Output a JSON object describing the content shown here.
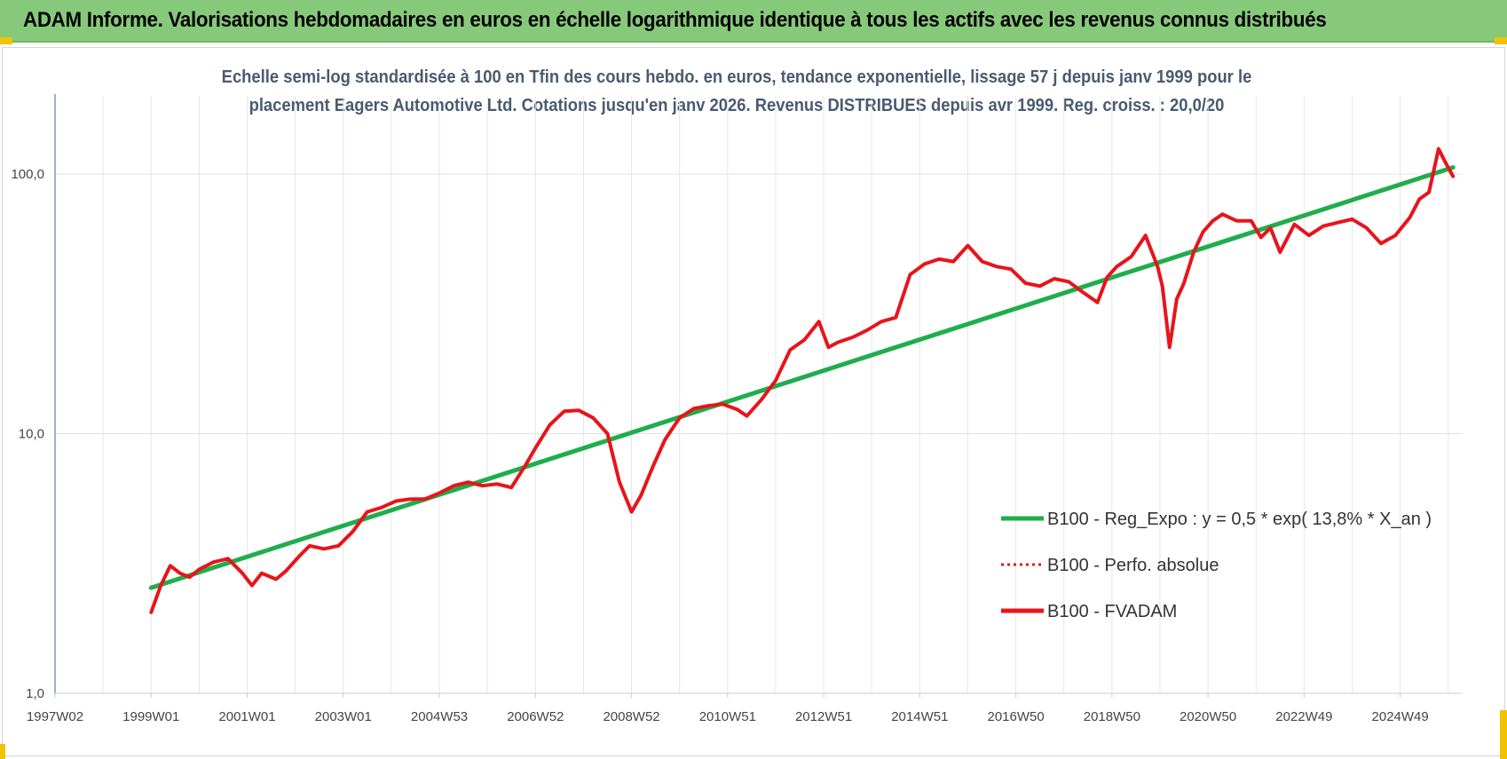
{
  "header": {
    "title": "ADAM Informe. Valorisations hebdomadaires en euros en échelle logarithmique identique à tous les actifs avec les revenus connus distribués"
  },
  "chart_data": {
    "type": "line",
    "title_line1": "Echelle semi-log standardisée à 100 en Tfin des cours hebdo. en euros, tendance exponentielle, lissage 57 j depuis janv 1999 pour le",
    "title_line2": "placement Eagers Automotive Ltd. Cotations jusqu'en janv 2026. Revenus DISTRIBUES depuis avr 1999. Reg. croiss. : 20,0/20",
    "y_scale": "log",
    "ylim": [
      1,
      100
    ],
    "y_ticks": [
      {
        "value": 1,
        "label": "1,0"
      },
      {
        "value": 10,
        "label": "10,0"
      },
      {
        "value": 100,
        "label": "100,0"
      }
    ],
    "xlim": [
      1997.0,
      2026.3
    ],
    "x_ticks": [
      {
        "value": 1997.0,
        "label": "1997W02"
      },
      {
        "value": 1999.0,
        "label": "1999W01"
      },
      {
        "value": 2001.0,
        "label": "2001W01"
      },
      {
        "value": 2003.0,
        "label": "2003W01"
      },
      {
        "value": 2005.0,
        "label": "2004W53"
      },
      {
        "value": 2007.0,
        "label": "2006W52"
      },
      {
        "value": 2009.0,
        "label": "2008W52"
      },
      {
        "value": 2011.0,
        "label": "2010W51"
      },
      {
        "value": 2013.0,
        "label": "2012W51"
      },
      {
        "value": 2015.0,
        "label": "2014W51"
      },
      {
        "value": 2017.0,
        "label": "2016W50"
      },
      {
        "value": 2019.0,
        "label": "2018W50"
      },
      {
        "value": 2021.0,
        "label": "2020W50"
      },
      {
        "value": 2023.0,
        "label": "2022W49"
      },
      {
        "value": 2025.0,
        "label": "2024W49"
      }
    ],
    "grid": true,
    "legend_position": "bottom-right",
    "series": [
      {
        "name": "B100 - Reg_Expo : y = 0,5 * exp( 13,8% *  X_an )",
        "color": "#1fae4b",
        "style": "solid",
        "x": [
          1999.0,
          2026.1
        ],
        "y": [
          2.55,
          106
        ]
      },
      {
        "name": "B100 - Perfo. absolue",
        "color": "#e8141b",
        "style": "dotted",
        "x": [],
        "y": []
      },
      {
        "name": "B100 - FVADAM",
        "color": "#e8141b",
        "style": "solid",
        "x": [
          1999.0,
          1999.2,
          1999.4,
          1999.6,
          1999.8,
          2000.0,
          2000.3,
          2000.6,
          2000.9,
          2001.1,
          2001.3,
          2001.6,
          2001.8,
          2002.1,
          2002.3,
          2002.6,
          2002.9,
          2003.2,
          2003.5,
          2003.8,
          2004.1,
          2004.4,
          2004.7,
          2005.0,
          2005.3,
          2005.6,
          2005.9,
          2006.2,
          2006.5,
          2006.8,
          2007.0,
          2007.3,
          2007.6,
          2007.9,
          2008.2,
          2008.5,
          2008.75,
          2009.0,
          2009.2,
          2009.45,
          2009.7,
          2010.0,
          2010.3,
          2010.6,
          2010.9,
          2011.2,
          2011.4,
          2011.7,
          2012.0,
          2012.3,
          2012.6,
          2012.9,
          2013.1,
          2013.3,
          2013.6,
          2013.9,
          2014.2,
          2014.5,
          2014.8,
          2015.1,
          2015.4,
          2015.7,
          2016.0,
          2016.3,
          2016.6,
          2016.9,
          2017.2,
          2017.5,
          2017.8,
          2018.1,
          2018.4,
          2018.7,
          2018.9,
          2019.1,
          2019.4,
          2019.7,
          2019.95,
          2020.05,
          2020.2,
          2020.35,
          2020.5,
          2020.7,
          2020.9,
          2021.1,
          2021.3,
          2021.6,
          2021.9,
          2022.1,
          2022.3,
          2022.5,
          2022.8,
          2023.1,
          2023.4,
          2023.7,
          2024.0,
          2024.3,
          2024.6,
          2024.9,
          2025.2,
          2025.4,
          2025.6,
          2025.8,
          2025.95,
          2026.1
        ],
        "y": [
          2.05,
          2.6,
          3.1,
          2.9,
          2.8,
          3.0,
          3.2,
          3.3,
          2.9,
          2.6,
          2.9,
          2.75,
          2.95,
          3.4,
          3.7,
          3.6,
          3.7,
          4.2,
          5.0,
          5.2,
          5.5,
          5.6,
          5.6,
          5.9,
          6.3,
          6.5,
          6.3,
          6.4,
          6.2,
          7.6,
          8.8,
          10.8,
          12.2,
          12.3,
          11.5,
          10.0,
          6.5,
          5.0,
          5.8,
          7.5,
          9.5,
          11.5,
          12.5,
          12.8,
          13.0,
          12.4,
          11.7,
          13.5,
          16.0,
          21.0,
          23.0,
          27.0,
          21.5,
          22.5,
          23.5,
          25.0,
          27.0,
          28.0,
          41.0,
          45.0,
          47.0,
          46.0,
          53.0,
          46.0,
          44.0,
          43.0,
          38.0,
          37.0,
          39.5,
          38.5,
          35.0,
          32.0,
          40.0,
          44.0,
          48.0,
          58.0,
          44.0,
          37.0,
          21.5,
          33.0,
          38.0,
          50.0,
          60.0,
          66.0,
          70.0,
          66.0,
          66.0,
          57.0,
          62.0,
          50.0,
          64.0,
          58.0,
          63.0,
          65.0,
          67.0,
          62.0,
          54.0,
          58.0,
          68.0,
          80.0,
          85.0,
          125.0,
          110.0,
          98.0
        ]
      }
    ]
  }
}
